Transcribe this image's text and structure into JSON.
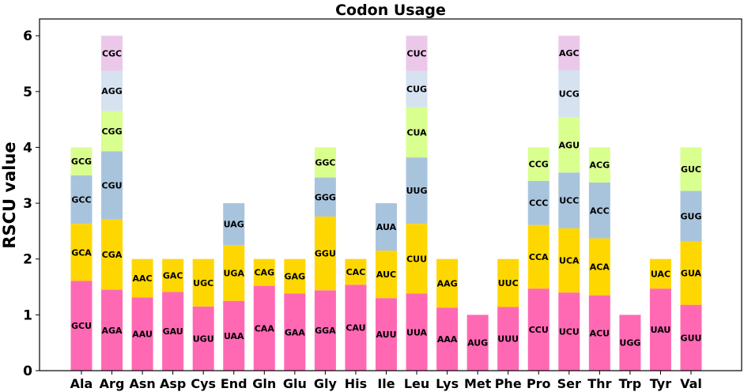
{
  "chart_data": {
    "type": "bar",
    "stacked": true,
    "title": "Codon Usage",
    "xlabel": "",
    "ylabel": "RSCU value",
    "ylim": [
      0,
      6.3
    ],
    "yticks": [
      0,
      1,
      2,
      3,
      4,
      5,
      6
    ],
    "grid": false,
    "legend": "none",
    "layer_colors": [
      "#ff69b4",
      "#ffd700",
      "#a8c4dd",
      "#d9ff8f",
      "#d6e2f0",
      "#ebc8ea"
    ],
    "categories": [
      "Ala",
      "Arg",
      "Asn",
      "Asp",
      "Cys",
      "End",
      "Gln",
      "Glu",
      "Gly",
      "His",
      "Ile",
      "Leu",
      "Lys",
      "Met",
      "Phe",
      "Pro",
      "Ser",
      "Thr",
      "Trp",
      "Tyr",
      "Val"
    ],
    "stacks": [
      [
        {
          "codon": "GCU",
          "value": 1.61,
          "layer": 0
        },
        {
          "codon": "GCA",
          "value": 1.02,
          "layer": 1
        },
        {
          "codon": "GCC",
          "value": 0.87,
          "layer": 2
        },
        {
          "codon": "GCG",
          "value": 0.5,
          "layer": 3
        }
      ],
      [
        {
          "codon": "AGA",
          "value": 1.45,
          "layer": 0
        },
        {
          "codon": "CGA",
          "value": 1.26,
          "layer": 1
        },
        {
          "codon": "CGU",
          "value": 1.22,
          "layer": 2
        },
        {
          "codon": "CGG",
          "value": 0.72,
          "layer": 3
        },
        {
          "codon": "AGG",
          "value": 0.72,
          "layer": 4
        },
        {
          "codon": "CGC",
          "value": 0.63,
          "layer": 5
        }
      ],
      [
        {
          "codon": "AAU",
          "value": 1.31,
          "layer": 0
        },
        {
          "codon": "AAC",
          "value": 0.69,
          "layer": 1
        }
      ],
      [
        {
          "codon": "GAU",
          "value": 1.41,
          "layer": 0
        },
        {
          "codon": "GAC",
          "value": 0.59,
          "layer": 1
        }
      ],
      [
        {
          "codon": "UGU",
          "value": 1.15,
          "layer": 0
        },
        {
          "codon": "UGC",
          "value": 0.85,
          "layer": 1
        }
      ],
      [
        {
          "codon": "UAA",
          "value": 1.25,
          "layer": 0
        },
        {
          "codon": "UGA",
          "value": 1.0,
          "layer": 1
        },
        {
          "codon": "UAG",
          "value": 0.75,
          "layer": 2
        }
      ],
      [
        {
          "codon": "CAA",
          "value": 1.52,
          "layer": 0
        },
        {
          "codon": "CAG",
          "value": 0.48,
          "layer": 1
        }
      ],
      [
        {
          "codon": "GAA",
          "value": 1.38,
          "layer": 0
        },
        {
          "codon": "GAG",
          "value": 0.62,
          "layer": 1
        }
      ],
      [
        {
          "codon": "GGA",
          "value": 1.44,
          "layer": 0
        },
        {
          "codon": "GGU",
          "value": 1.32,
          "layer": 1
        },
        {
          "codon": "GGG",
          "value": 0.7,
          "layer": 2
        },
        {
          "codon": "GGC",
          "value": 0.54,
          "layer": 3
        }
      ],
      [
        {
          "codon": "CAU",
          "value": 1.54,
          "layer": 0
        },
        {
          "codon": "CAC",
          "value": 0.46,
          "layer": 1
        }
      ],
      [
        {
          "codon": "AUU",
          "value": 1.3,
          "layer": 0
        },
        {
          "codon": "AUC",
          "value": 0.85,
          "layer": 1
        },
        {
          "codon": "AUA",
          "value": 0.85,
          "layer": 2
        }
      ],
      [
        {
          "codon": "UUA",
          "value": 1.38,
          "layer": 0
        },
        {
          "codon": "CUU",
          "value": 1.25,
          "layer": 1
        },
        {
          "codon": "UUG",
          "value": 1.19,
          "layer": 2
        },
        {
          "codon": "CUA",
          "value": 0.9,
          "layer": 3
        },
        {
          "codon": "CUG",
          "value": 0.65,
          "layer": 4
        },
        {
          "codon": "CUC",
          "value": 0.63,
          "layer": 5
        }
      ],
      [
        {
          "codon": "AAA",
          "value": 1.13,
          "layer": 0
        },
        {
          "codon": "AAG",
          "value": 0.87,
          "layer": 1
        }
      ],
      [
        {
          "codon": "AUG",
          "value": 1.0,
          "layer": 0
        }
      ],
      [
        {
          "codon": "UUU",
          "value": 1.14,
          "layer": 0
        },
        {
          "codon": "UUC",
          "value": 0.86,
          "layer": 1
        }
      ],
      [
        {
          "codon": "CCU",
          "value": 1.47,
          "layer": 0
        },
        {
          "codon": "CCA",
          "value": 1.14,
          "layer": 1
        },
        {
          "codon": "CCC",
          "value": 0.79,
          "layer": 2
        },
        {
          "codon": "CCG",
          "value": 0.6,
          "layer": 3
        }
      ],
      [
        {
          "codon": "UCU",
          "value": 1.4,
          "layer": 0
        },
        {
          "codon": "UCA",
          "value": 1.15,
          "layer": 1
        },
        {
          "codon": "UCC",
          "value": 1.0,
          "layer": 2
        },
        {
          "codon": "AGU",
          "value": 0.99,
          "layer": 3
        },
        {
          "codon": "UCG",
          "value": 0.84,
          "layer": 4
        },
        {
          "codon": "AGC",
          "value": 0.62,
          "layer": 5
        }
      ],
      [
        {
          "codon": "ACU",
          "value": 1.35,
          "layer": 0
        },
        {
          "codon": "ACA",
          "value": 1.02,
          "layer": 1
        },
        {
          "codon": "ACC",
          "value": 1.0,
          "layer": 2
        },
        {
          "codon": "ACG",
          "value": 0.63,
          "layer": 3
        }
      ],
      [
        {
          "codon": "UGG",
          "value": 1.0,
          "layer": 0
        }
      ],
      [
        {
          "codon": "UAU",
          "value": 1.47,
          "layer": 0
        },
        {
          "codon": "UAC",
          "value": 0.53,
          "layer": 1
        }
      ],
      [
        {
          "codon": "GUU",
          "value": 1.18,
          "layer": 0
        },
        {
          "codon": "GUA",
          "value": 1.13,
          "layer": 1
        },
        {
          "codon": "GUG",
          "value": 0.91,
          "layer": 2
        },
        {
          "codon": "GUC",
          "value": 0.78,
          "layer": 3
        }
      ]
    ]
  }
}
